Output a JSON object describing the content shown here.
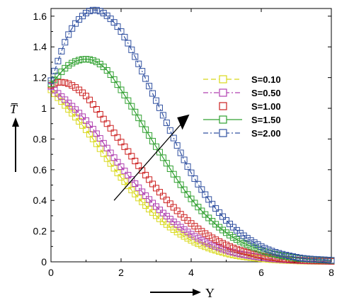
{
  "chart_data": {
    "type": "scatter",
    "xlabel": "Y",
    "ylabel": "T̅",
    "xlim": [
      0,
      8
    ],
    "ylim": [
      0,
      1.65
    ],
    "x_ticks": [
      "0",
      "2",
      "4",
      "6",
      "8"
    ],
    "y_ticks": [
      "0",
      "0.2",
      "0.4",
      "0.6",
      "0.8",
      "1",
      "1.2",
      "1.4",
      "1.6"
    ],
    "grid": false,
    "legend_position": "right",
    "series": [
      {
        "name": "S=0.10",
        "color": "#d8d81a",
        "line_style": "dash",
        "marker": "square",
        "x": [
          0,
          1,
          2,
          3,
          4,
          5,
          6,
          7,
          8
        ],
        "y": [
          1.12,
          0.86,
          0.55,
          0.3,
          0.14,
          0.055,
          0.02,
          0.006,
          0.002
        ]
      },
      {
        "name": "S=0.50",
        "color": "#b040b0",
        "line_style": "dashdot",
        "marker": "square",
        "x": [
          0,
          1,
          2,
          3,
          4,
          5,
          6,
          7,
          8
        ],
        "y": [
          1.14,
          0.92,
          0.62,
          0.36,
          0.18,
          0.075,
          0.028,
          0.009,
          0.003
        ]
      },
      {
        "name": "S=1.00",
        "color": "#cc2020",
        "line_style": "none",
        "marker": "square",
        "x": [
          0,
          0.25,
          0.5,
          1,
          1.5,
          2,
          3,
          4,
          5,
          6,
          7,
          8
        ],
        "y": [
          1.15,
          1.17,
          1.16,
          1.08,
          0.93,
          0.78,
          0.48,
          0.25,
          0.11,
          0.04,
          0.012,
          0.004
        ]
      },
      {
        "name": "S=1.50",
        "color": "#30a030",
        "line_style": "solid",
        "marker": "square",
        "x": [
          0,
          0.5,
          1,
          1.5,
          2,
          3,
          4,
          5,
          6,
          7,
          8
        ],
        "y": [
          1.16,
          1.28,
          1.32,
          1.27,
          1.12,
          0.75,
          0.41,
          0.19,
          0.075,
          0.025,
          0.008
        ]
      },
      {
        "name": "S=2.00",
        "color": "#3050a0",
        "line_style": "dashdot",
        "marker": "square",
        "x": [
          0,
          0.5,
          1,
          1.25,
          1.5,
          2,
          3,
          4,
          5,
          6,
          7,
          8
        ],
        "y": [
          1.18,
          1.48,
          1.62,
          1.64,
          1.62,
          1.5,
          1.05,
          0.58,
          0.27,
          0.1,
          0.03,
          0.01
        ]
      }
    ]
  }
}
